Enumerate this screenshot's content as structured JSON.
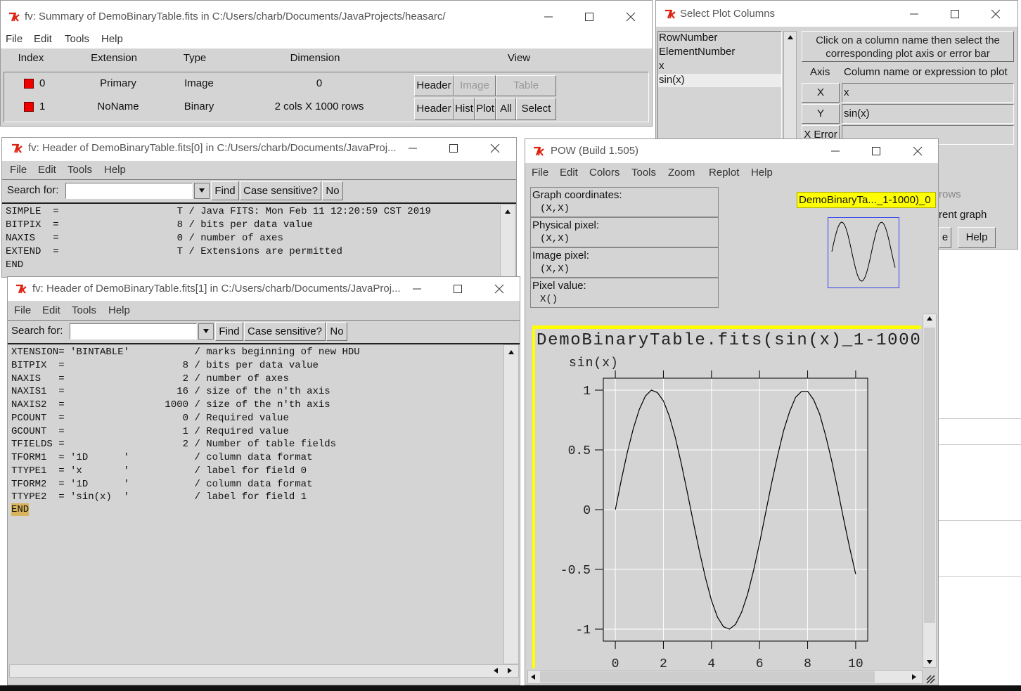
{
  "summary_window": {
    "title": "fv: Summary of DemoBinaryTable.fits in C:/Users/charb/Documents/JavaProjects/heasarc/",
    "menu": [
      "File",
      "Edit",
      "Tools",
      "Help"
    ],
    "columns": [
      "Index",
      "Extension",
      "Type",
      "Dimension",
      "View"
    ],
    "rows": [
      {
        "index": "0",
        "extension": "Primary",
        "type": "Image",
        "dimension": "0",
        "buttons": [
          "Header",
          "Image",
          "Table"
        ]
      },
      {
        "index": "1",
        "extension": "NoName",
        "type": "Binary",
        "dimension": "2 cols X 1000 rows",
        "buttons": [
          "Header",
          "Hist",
          "Plot",
          "All",
          "Select"
        ]
      }
    ]
  },
  "plot_columns_window": {
    "title": "Select Plot Columns",
    "column_list": [
      "RowNumber",
      "ElementNumber",
      "x",
      "sin(x)"
    ],
    "instructions": "Click on a column name then select the corresponding plot axis or error bar",
    "axis_header": "Axis",
    "expression_header": "Column name or expression to plot",
    "axes": [
      {
        "axis": "X",
        "expression": "x"
      },
      {
        "axis": "Y",
        "expression": "sin(x)"
      },
      {
        "axis": "X Error"
      }
    ],
    "partial_texts": [
      "rows",
      "rent graph"
    ],
    "partial_buttons": [
      "e",
      "Help"
    ]
  },
  "header0_window": {
    "title": "fv: Header of DemoBinaryTable.fits[0] in C:/Users/charb/Documents/JavaProj...",
    "menu": [
      "File",
      "Edit",
      "Tools",
      "Help"
    ],
    "search_label": "Search for:",
    "find": "Find",
    "case_label": "Case sensitive?",
    "case_value": "No",
    "lines": [
      "SIMPLE  =                    T / Java FITS: Mon Feb 11 12:20:59 CST 2019",
      "BITPIX  =                    8 / bits per data value",
      "NAXIS   =                    0 / number of axes",
      "EXTEND  =                    T / Extensions are permitted",
      "END"
    ]
  },
  "header1_window": {
    "title": "fv: Header of DemoBinaryTable.fits[1] in C:/Users/charb/Documents/JavaProj...",
    "menu": [
      "File",
      "Edit",
      "Tools",
      "Help"
    ],
    "search_label": "Search for:",
    "find": "Find",
    "case_label": "Case sensitive?",
    "case_value": "No",
    "lines": [
      "XTENSION= 'BINTABLE'           / marks beginning of new HDU",
      "BITPIX  =                    8 / bits per data value",
      "NAXIS   =                    2 / number of axes",
      "NAXIS1  =                   16 / size of the n'th axis",
      "NAXIS2  =                 1000 / size of the n'th axis",
      "PCOUNT  =                    0 / Required value",
      "GCOUNT  =                    1 / Required value",
      "TFIELDS =                    2 / Number of table fields",
      "TFORM1  = '1D      '           / column data format",
      "TTYPE1  = 'x       '           / label for field 0",
      "TFORM2  = '1D      '           / column data format",
      "TTYPE2  = 'sin(x)  '           / label for field 1",
      "END"
    ]
  },
  "pow_window": {
    "title": "POW (Build 1.505)",
    "menu": [
      "File",
      "Edit",
      "Colors",
      "Tools",
      "Zoom",
      "Replot",
      "Help"
    ],
    "coordinates": [
      {
        "label": "Graph coordinates:",
        "value": "(X,X)"
      },
      {
        "label": "Physical pixel:",
        "value": "(X,X)"
      },
      {
        "label": "Image pixel:",
        "value": "(X,X)"
      },
      {
        "label": "Pixel value:",
        "value": "X()"
      }
    ],
    "graph_tag": "DemoBinaryTa..._1-1000)_0"
  },
  "chart_data": {
    "type": "line",
    "title": "DemoBinaryTable.fits(sin(x)_1-1000",
    "y_label": "sin(x)",
    "x": [
      0,
      0.25,
      0.5,
      0.75,
      1,
      1.25,
      1.5,
      1.75,
      2,
      2.25,
      2.5,
      2.75,
      3,
      3.25,
      3.5,
      3.75,
      4,
      4.25,
      4.5,
      4.75,
      5,
      5.25,
      5.5,
      5.75,
      6,
      6.25,
      6.5,
      6.75,
      7,
      7.25,
      7.5,
      7.75,
      8,
      8.25,
      8.5,
      8.75,
      9,
      9.25,
      9.5,
      9.75,
      10
    ],
    "values": [
      0,
      0.25,
      0.48,
      0.68,
      0.84,
      0.95,
      1.0,
      0.98,
      0.91,
      0.78,
      0.6,
      0.38,
      0.14,
      -0.11,
      -0.35,
      -0.57,
      -0.76,
      -0.9,
      -0.98,
      -1.0,
      -0.96,
      -0.86,
      -0.71,
      -0.51,
      -0.28,
      -0.03,
      0.22,
      0.45,
      0.66,
      0.82,
      0.94,
      0.99,
      0.99,
      0.92,
      0.8,
      0.62,
      0.41,
      0.17,
      -0.08,
      -0.32,
      -0.54
    ],
    "color": "#000000",
    "grid": true,
    "xlim": [
      -0.5,
      10.5
    ],
    "ylim": [
      -1.1,
      1.1
    ],
    "xticks": [
      0,
      2,
      4,
      6,
      8,
      10
    ],
    "yticks": [
      1,
      0.5,
      0,
      -0.5,
      -1
    ]
  }
}
